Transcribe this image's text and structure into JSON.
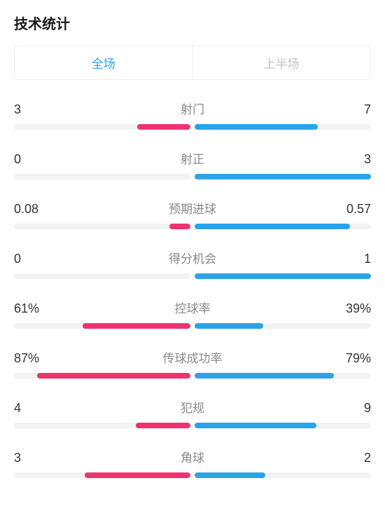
{
  "title": "技术统计",
  "colors": {
    "left": "#f0326e",
    "right": "#2aa3e8",
    "track": "#f2f2f2",
    "tab_active": "#2aa3e8",
    "tab_inactive": "#c2c2c2",
    "stat_name": "#888888",
    "stat_value": "#333333"
  },
  "tabs": [
    {
      "label": "全场",
      "active": true
    },
    {
      "label": "上半场",
      "active": false
    }
  ],
  "stats": [
    {
      "name": "射门",
      "left_label": "3",
      "right_label": "7",
      "left_pct": 30,
      "right_pct": 70
    },
    {
      "name": "射正",
      "left_label": "0",
      "right_label": "3",
      "left_pct": 0,
      "right_pct": 100
    },
    {
      "name": "预期进球",
      "left_label": "0.08",
      "right_label": "0.57",
      "left_pct": 12,
      "right_pct": 88
    },
    {
      "name": "得分机会",
      "left_label": "0",
      "right_label": "1",
      "left_pct": 0,
      "right_pct": 100
    },
    {
      "name": "控球率",
      "left_label": "61%",
      "right_label": "39%",
      "left_pct": 61,
      "right_pct": 39
    },
    {
      "name": "传球成功率",
      "left_label": "87%",
      "right_label": "79%",
      "left_pct": 87,
      "right_pct": 79
    },
    {
      "name": "犯规",
      "left_label": "4",
      "right_label": "9",
      "left_pct": 31,
      "right_pct": 69
    },
    {
      "name": "角球",
      "left_label": "3",
      "right_label": "2",
      "left_pct": 60,
      "right_pct": 40
    }
  ]
}
